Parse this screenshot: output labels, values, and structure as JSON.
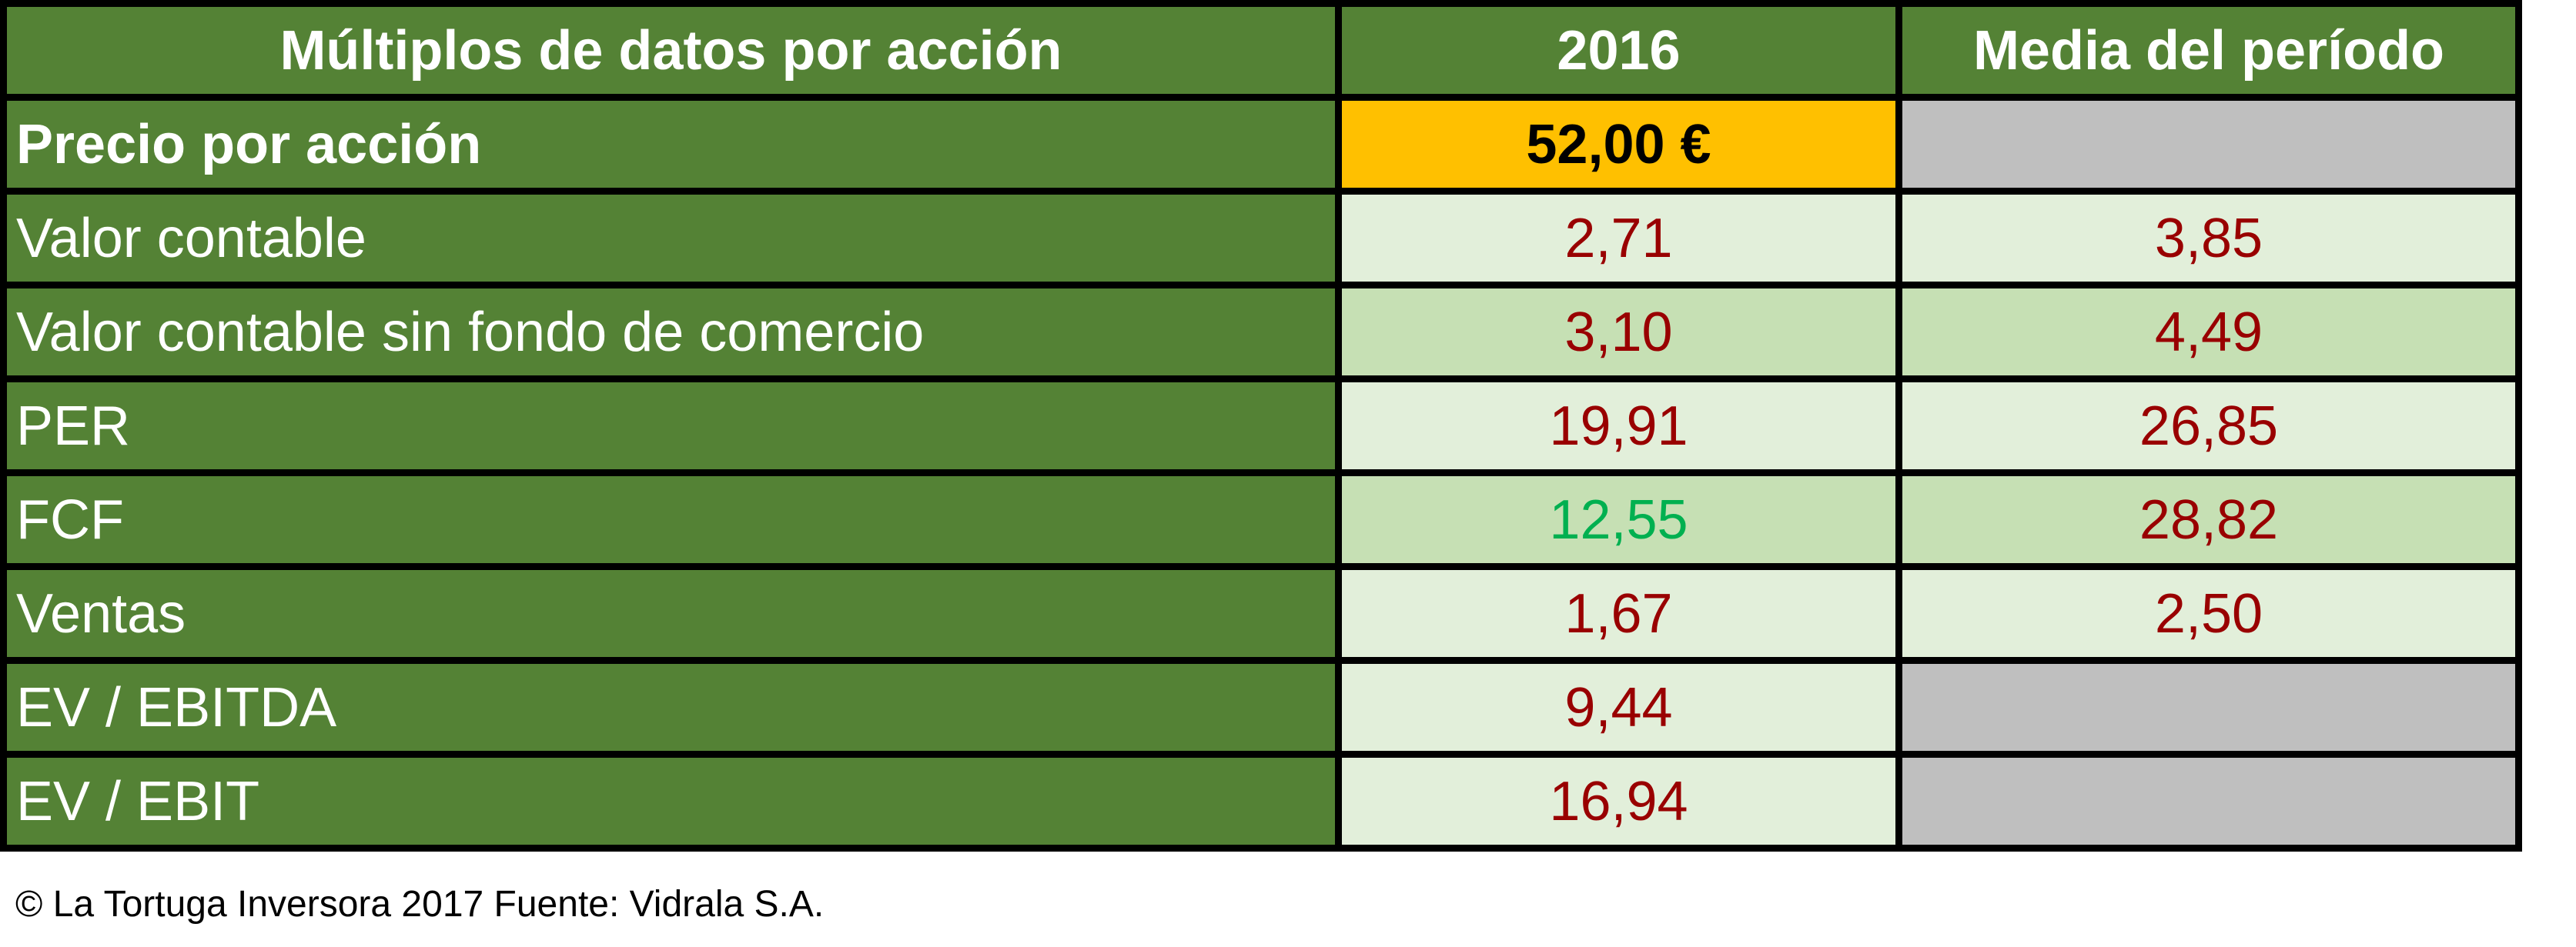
{
  "table": {
    "header": [
      "Múltiplos de datos por acción",
      "2016",
      "Media del período"
    ],
    "rows": [
      [
        "Precio por acción",
        "52,00 €",
        null
      ],
      [
        "Valor contable",
        "2,71",
        "3,85"
      ],
      [
        "Valor contable sin fondo de comercio",
        "3,10",
        "4,49"
      ],
      [
        "PER",
        "19,91",
        "26,85"
      ],
      [
        "FCF",
        "12,55",
        "28,82"
      ],
      [
        "Ventas",
        "1,67",
        "2,50"
      ],
      [
        "EV / EBITDA",
        "9,44",
        null
      ],
      [
        "EV / EBIT",
        "16,94",
        null
      ]
    ]
  },
  "footer": "© La Tortuga Inversora 2017 Fuente: Vidrala S.A."
}
